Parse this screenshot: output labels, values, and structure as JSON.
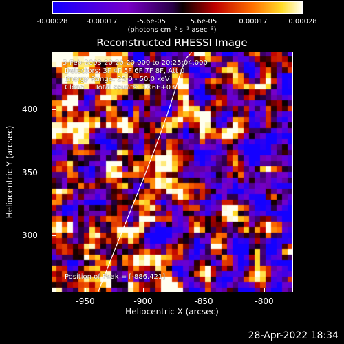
{
  "colorbar": {
    "tick_labels": [
      "-0.00028",
      "-0.00017",
      "-5.6e-05",
      "5.6e-05",
      "0.00017",
      "0.00028"
    ],
    "unit_label": "(photons cm⁻² s⁻¹ asec⁻²)"
  },
  "title": "Reconstructed RHESSI Image",
  "annotations": {
    "time": " 5-Feb-2003 20:20:20.000 to 20:25:04.000",
    "detectors": "Detectors: 3F 4F 5F 6F 7F 8F, Att 0",
    "energy": "Energy Range: 25.0 - 50.0 keV",
    "clean": "Clean     Total counts: 3.06E+03",
    "peak": "Position of Peak = [-886,421]"
  },
  "axes": {
    "xlabel": "Heliocentric X (arcsec)",
    "ylabel": "Heliocentric Y (arcsec)",
    "x_ticks": [
      "-950",
      "-900",
      "-850",
      "-800"
    ],
    "y_ticks": [
      "400",
      "350",
      "300"
    ]
  },
  "timestamp": "28-Apr-2022 18:34"
}
